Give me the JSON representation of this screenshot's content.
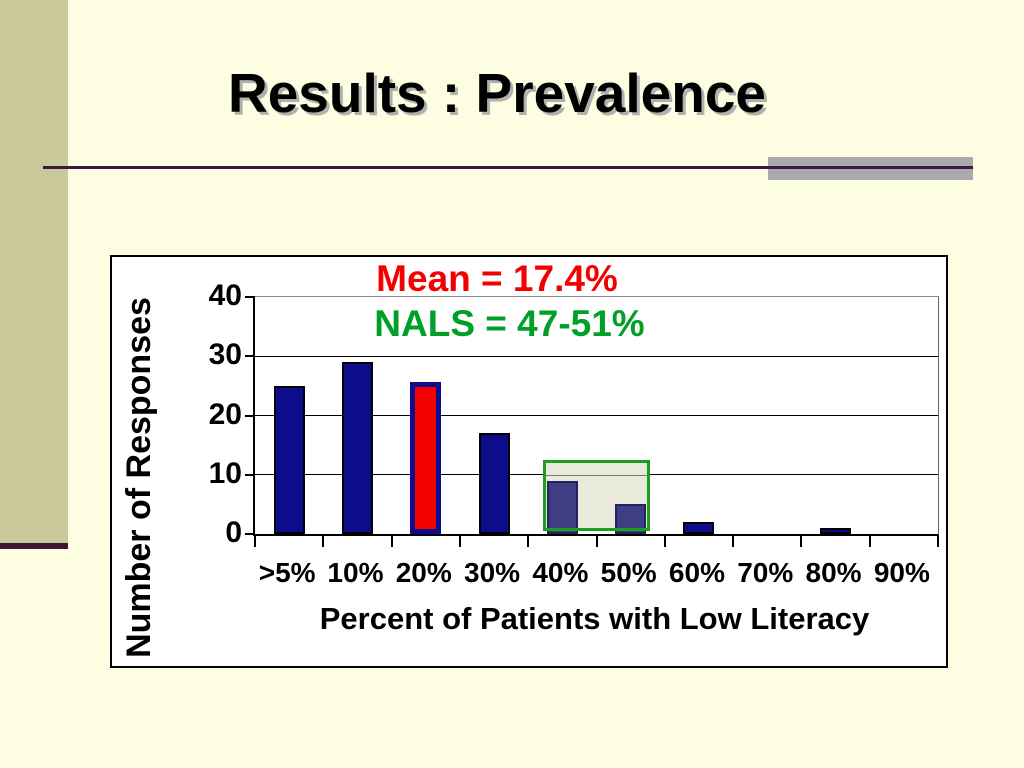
{
  "slide": {
    "title": "Results : Prevalence"
  },
  "chart_data": {
    "type": "bar",
    "categories": [
      ">5%",
      "10%",
      "20%",
      "30%",
      "40%",
      "50%",
      "60%",
      "70%",
      "80%",
      "90%"
    ],
    "values": [
      25,
      29,
      25,
      17,
      9,
      5,
      2,
      0,
      1,
      0
    ],
    "xlabel": "Percent of Patients with Low Literacy",
    "ylabel": "Number of Responses",
    "ylim": [
      0,
      40
    ],
    "yticks": [
      0,
      10,
      20,
      30,
      40
    ],
    "grid": true,
    "annotations": [
      {
        "text": "Mean = 17.4%",
        "color": "#F40000"
      },
      {
        "text": "NALS = 47-51%",
        "color": "#00A028"
      }
    ],
    "highlight": {
      "red_bar_index": 2,
      "red_bar_note": "20% bar filled red with navy outline",
      "box_categories": [
        "40%",
        "50%"
      ],
      "box_y_range": [
        0.5,
        12.5
      ],
      "box_note": "green outlined translucent box over 40% and 50% bars"
    }
  },
  "colors": {
    "slide_bg": "#FDFDE1",
    "stripe": "#C9C99B",
    "stripe_accent": "#3E1535",
    "divider": "#3A1A3F",
    "accent_gray": "#A9A9B0",
    "chart_border": "#000000",
    "bar_navy": "#0D0D8C",
    "bar_red": "#F40000",
    "muted_bar": "#3E3E85",
    "muted_bar_border": "#22225E",
    "box_green": "#1E9E1E",
    "box_fill": "#EAEADC",
    "mean_red": "#F40000",
    "nals_green": "#00A028",
    "grid_gray": "#8C8C8C",
    "title_shadow": "#B0B0B0"
  }
}
